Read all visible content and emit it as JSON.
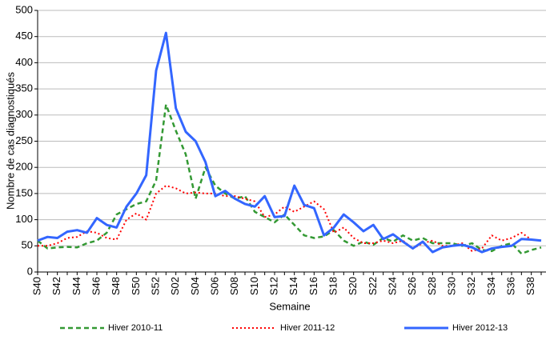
{
  "chart_data": {
    "type": "line",
    "x_label": "Semaine",
    "y_label": "Nombre de cas diagnostiqués",
    "categories": [
      "S40",
      null,
      "S42",
      null,
      "S44",
      null,
      "S46",
      null,
      "S48",
      null,
      "S50",
      null,
      "S52",
      null,
      "S02",
      null,
      "S04",
      null,
      "S06",
      null,
      "S08",
      null,
      "S10",
      null,
      "S12",
      null,
      "S14",
      null,
      "S16",
      null,
      "S18",
      null,
      "S20",
      null,
      "S22",
      null,
      "S24",
      null,
      "S26",
      null,
      "S28",
      null,
      "S30",
      null,
      "S32",
      null,
      "S34",
      null,
      "S36",
      null,
      "S38",
      null
    ],
    "series": [
      {
        "name": "Hiver 2010-11",
        "color": "#339933",
        "dash": "6,4",
        "width": 2.5,
        "values": [
          60,
          45,
          47,
          48,
          47,
          55,
          60,
          75,
          110,
          120,
          130,
          135,
          175,
          320,
          270,
          225,
          140,
          200,
          165,
          150,
          140,
          145,
          115,
          105,
          95,
          110,
          90,
          70,
          65,
          68,
          80,
          60,
          50,
          58,
          52,
          65,
          58,
          70,
          60,
          65,
          55,
          55,
          55,
          50,
          55,
          42,
          40,
          50,
          55,
          35,
          42,
          47
        ]
      },
      {
        "name": "Hiver 2011-12",
        "color": "#ff0000",
        "dash": "2,3",
        "width": 2,
        "values": [
          50,
          50,
          55,
          65,
          67,
          78,
          75,
          65,
          62,
          100,
          112,
          100,
          150,
          165,
          160,
          150,
          152,
          150,
          150,
          145,
          145,
          140,
          135,
          105,
          110,
          125,
          115,
          125,
          135,
          120,
          75,
          85,
          65,
          55,
          55,
          60,
          55,
          60,
          45,
          55,
          60,
          50,
          50,
          55,
          40,
          45,
          70,
          60,
          65,
          75,
          62,
          60
        ]
      },
      {
        "name": "Hiver 2012-13",
        "color": "#3366ff",
        "dash": "",
        "width": 3,
        "values": [
          60,
          67,
          65,
          77,
          80,
          75,
          103,
          90,
          85,
          125,
          150,
          185,
          385,
          457,
          313,
          268,
          250,
          210,
          145,
          155,
          140,
          130,
          125,
          145,
          105,
          107,
          165,
          128,
          122,
          70,
          85,
          110,
          95,
          78,
          90,
          63,
          72,
          58,
          45,
          58,
          38,
          47,
          50,
          52,
          47,
          38,
          45,
          48,
          50,
          63,
          62,
          60
        ]
      }
    ],
    "ylim": [
      0,
      500
    ],
    "yticks": [
      0,
      50,
      100,
      150,
      200,
      250,
      300,
      350,
      400,
      450,
      500
    ],
    "grid": true
  }
}
